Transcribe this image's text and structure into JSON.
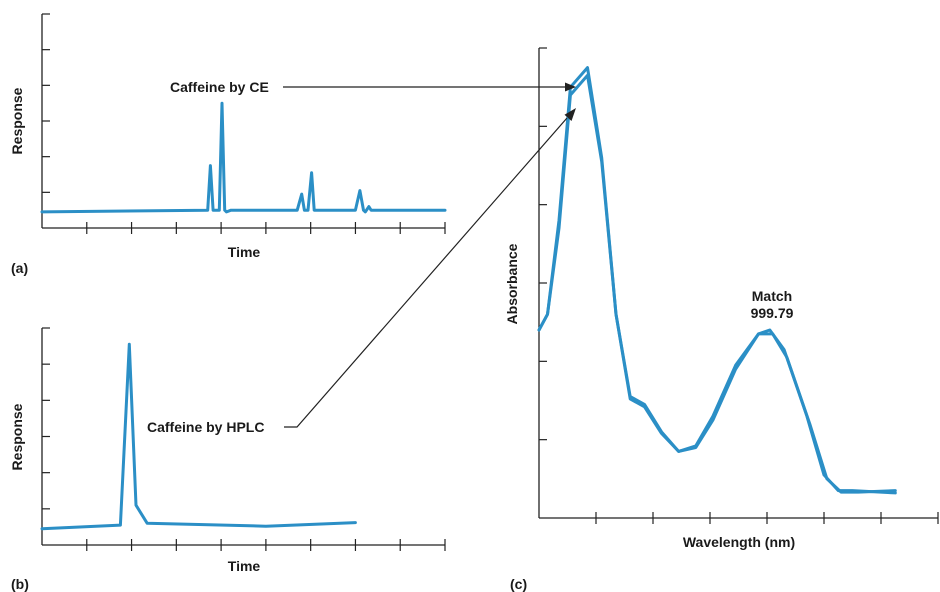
{
  "panels": {
    "a": {
      "tag": "(a)",
      "xlabel": "Time",
      "ylabel": "Response",
      "annotation": "Caffeine by CE"
    },
    "b": {
      "tag": "(b)",
      "xlabel": "Time",
      "ylabel": "Response",
      "annotation": "Caffeine by HPLC"
    },
    "c": {
      "tag": "(c)",
      "xlabel": "Wavelength (nm)",
      "ylabel": "Absorbance",
      "match_label": "Match",
      "match_value": "999.79"
    }
  },
  "colors": {
    "trace": "#2b8fc6",
    "axis": "#222222",
    "text": "#1a1a1a"
  },
  "chart_data": [
    {
      "type": "line",
      "xlabel": "Time",
      "ylabel": "Response",
      "xlim": [
        0,
        9
      ],
      "ylim": [
        0,
        6
      ],
      "x_ticks": 9,
      "y_ticks": 6,
      "grid": false,
      "series": [
        {
          "points": [
            [
              0,
              0.45
            ],
            [
              3.7,
              0.5
            ],
            [
              3.76,
              1.75
            ],
            [
              3.82,
              0.5
            ],
            [
              3.96,
              0.5
            ],
            [
              4.02,
              3.5
            ],
            [
              4.08,
              0.5
            ],
            [
              4.12,
              0.45
            ],
            [
              4.22,
              0.5
            ],
            [
              5.7,
              0.5
            ],
            [
              5.8,
              0.95
            ],
            [
              5.86,
              0.5
            ],
            [
              5.94,
              0.5
            ],
            [
              6.02,
              1.55
            ],
            [
              6.08,
              0.5
            ],
            [
              6.4,
              0.5
            ],
            [
              7.0,
              0.5
            ],
            [
              7.1,
              1.05
            ],
            [
              7.18,
              0.5
            ],
            [
              7.22,
              0.45
            ],
            [
              7.3,
              0.6
            ],
            [
              7.35,
              0.5
            ],
            [
              9,
              0.5
            ]
          ]
        }
      ]
    },
    {
      "type": "line",
      "xlabel": "Time",
      "ylabel": "Response",
      "xlim": [
        0,
        9
      ],
      "ylim": [
        0,
        6
      ],
      "x_ticks": 9,
      "y_ticks": 6,
      "grid": false,
      "series": [
        {
          "points": [
            [
              0,
              0.45
            ],
            [
              1.75,
              0.55
            ],
            [
              1.95,
              5.55
            ],
            [
              2.1,
              1.1
            ],
            [
              2.35,
              0.6
            ],
            [
              5,
              0.52
            ],
            [
              7,
              0.62
            ]
          ]
        }
      ]
    },
    {
      "type": "line",
      "xlabel": "Wavelength (nm)",
      "ylabel": "Absorbance",
      "xlim": [
        0,
        7
      ],
      "ylim": [
        0,
        6
      ],
      "x_ticks": 7,
      "y_ticks": 6,
      "grid": false,
      "annotations": [
        "Match",
        "999.79"
      ],
      "series": [
        {
          "points": [
            [
              0,
              2.4
            ],
            [
              0.15,
              2.6
            ],
            [
              0.35,
              3.8
            ],
            [
              0.55,
              5.5
            ],
            [
              0.85,
              5.75
            ],
            [
              1.1,
              4.6
            ],
            [
              1.35,
              2.6
            ],
            [
              1.6,
              1.55
            ],
            [
              1.85,
              1.45
            ],
            [
              2.15,
              1.1
            ],
            [
              2.45,
              0.85
            ],
            [
              2.75,
              0.9
            ],
            [
              3.05,
              1.25
            ],
            [
              3.45,
              1.9
            ],
            [
              3.85,
              2.35
            ],
            [
              4.05,
              2.4
            ],
            [
              4.3,
              2.15
            ],
            [
              4.7,
              1.3
            ],
            [
              5.0,
              0.55
            ],
            [
              5.25,
              0.35
            ],
            [
              5.5,
              0.35
            ],
            [
              6.25,
              0.32
            ]
          ]
        },
        {
          "points": [
            [
              0,
              2.4
            ],
            [
              0.15,
              2.6
            ],
            [
              0.35,
              3.7
            ],
            [
              0.55,
              5.4
            ],
            [
              0.85,
              5.65
            ],
            [
              1.1,
              4.55
            ],
            [
              1.35,
              2.6
            ],
            [
              1.6,
              1.52
            ],
            [
              1.85,
              1.42
            ],
            [
              2.15,
              1.08
            ],
            [
              2.45,
              0.85
            ],
            [
              2.75,
              0.92
            ],
            [
              3.05,
              1.3
            ],
            [
              3.45,
              1.95
            ],
            [
              3.85,
              2.35
            ],
            [
              4.1,
              2.35
            ],
            [
              4.35,
              2.05
            ],
            [
              4.75,
              1.2
            ],
            [
              5.05,
              0.5
            ],
            [
              5.3,
              0.33
            ],
            [
              5.6,
              0.33
            ],
            [
              6.25,
              0.35
            ]
          ]
        }
      ]
    }
  ]
}
